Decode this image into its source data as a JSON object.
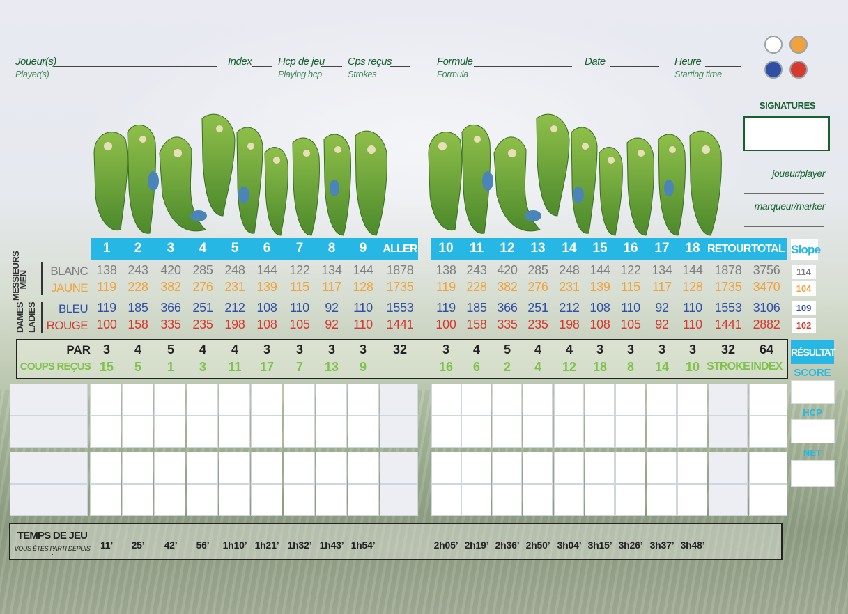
{
  "header": {
    "player_label": "Joueur(s)",
    "player_sub": "Player(s)",
    "index_label": "Index",
    "hcp_label": "Hcp de jeu",
    "hcp_sub": "Playing hcp",
    "strokes_label": "Cps reçus",
    "strokes_sub": "Strokes",
    "formula_label": "Formule",
    "formula_sub": "Formula",
    "date_label": "Date",
    "time_label": "Heure",
    "time_sub": "Starting time"
  },
  "tee_colors": {
    "white": "#ffffff",
    "yellow": "#f0a23c",
    "blue": "#2f4ea6",
    "red": "#d63a2f"
  },
  "signatures": {
    "title": "SIGNATURES",
    "player": "joueur/player",
    "marker": "marqueur/marker"
  },
  "holes": {
    "front": [
      "1",
      "2",
      "3",
      "4",
      "5",
      "6",
      "7",
      "8",
      "9"
    ],
    "back": [
      "10",
      "11",
      "12",
      "13",
      "14",
      "15",
      "16",
      "17",
      "18"
    ],
    "out_label": "ALLER",
    "in_label": "RETOUR",
    "total_label": "TOTAL",
    "slope_label": "Slope"
  },
  "groups": {
    "men_fr": "MESSIEURS",
    "men_en": "MEN",
    "ladies_fr": "DAMES",
    "ladies_en": "LADIES"
  },
  "tees": [
    {
      "name": "BLANC",
      "color": "#7b7d80",
      "front": [
        "138",
        "243",
        "420",
        "285",
        "248",
        "144",
        "122",
        "134",
        "144"
      ],
      "out": "1878",
      "back": [
        "138",
        "243",
        "420",
        "285",
        "248",
        "144",
        "122",
        "134",
        "144"
      ],
      "in": "1878",
      "total": "3756",
      "slope": "114"
    },
    {
      "name": "JAUNE",
      "color": "#f0a23c",
      "front": [
        "119",
        "228",
        "382",
        "276",
        "231",
        "139",
        "115",
        "117",
        "128"
      ],
      "out": "1735",
      "back": [
        "119",
        "228",
        "382",
        "276",
        "231",
        "139",
        "115",
        "117",
        "128"
      ],
      "in": "1735",
      "total": "3470",
      "slope": "104"
    },
    {
      "name": "BLEU",
      "color": "#2f4ea6",
      "front": [
        "119",
        "185",
        "366",
        "251",
        "212",
        "108",
        "110",
        "92",
        "110"
      ],
      "out": "1553",
      "back": [
        "119",
        "185",
        "366",
        "251",
        "212",
        "108",
        "110",
        "92",
        "110"
      ],
      "in": "1553",
      "total": "3106",
      "slope": "109"
    },
    {
      "name": "ROUGE",
      "color": "#d63a2f",
      "front": [
        "100",
        "158",
        "335",
        "235",
        "198",
        "108",
        "105",
        "92",
        "110"
      ],
      "out": "1441",
      "back": [
        "100",
        "158",
        "335",
        "235",
        "198",
        "108",
        "105",
        "92",
        "110"
      ],
      "in": "1441",
      "total": "2882",
      "slope": "102"
    }
  ],
  "par": {
    "label": "PAR",
    "front": [
      "3",
      "4",
      "5",
      "4",
      "4",
      "3",
      "3",
      "3",
      "3"
    ],
    "out": "32",
    "back": [
      "3",
      "4",
      "5",
      "4",
      "4",
      "3",
      "3",
      "3",
      "3"
    ],
    "in": "32",
    "total": "64"
  },
  "coups": {
    "label": "COUPS REÇUS",
    "front": [
      "15",
      "5",
      "1",
      "3",
      "11",
      "17",
      "7",
      "13",
      "9"
    ],
    "back": [
      "16",
      "6",
      "2",
      "4",
      "12",
      "18",
      "8",
      "14",
      "10"
    ],
    "stroke_label": "STROKE",
    "index_label": "INDEX"
  },
  "results": {
    "title": "RÉSULTAT",
    "score": "SCORE",
    "hcp": "HCP",
    "net": "NET"
  },
  "time": {
    "title": "TEMPS DE JEU",
    "subtitle": "VOUS ÊTES PARTI DEPUIS :",
    "front": [
      "11’",
      "25’",
      "42’",
      "56’",
      "1h10’",
      "1h21’",
      "1h32’",
      "1h43’",
      "1h54’"
    ],
    "back": [
      "2h05’",
      "2h19’",
      "2h36’",
      "2h50’",
      "3h04’",
      "3h15’",
      "3h26’",
      "3h37’",
      "3h48’"
    ]
  }
}
